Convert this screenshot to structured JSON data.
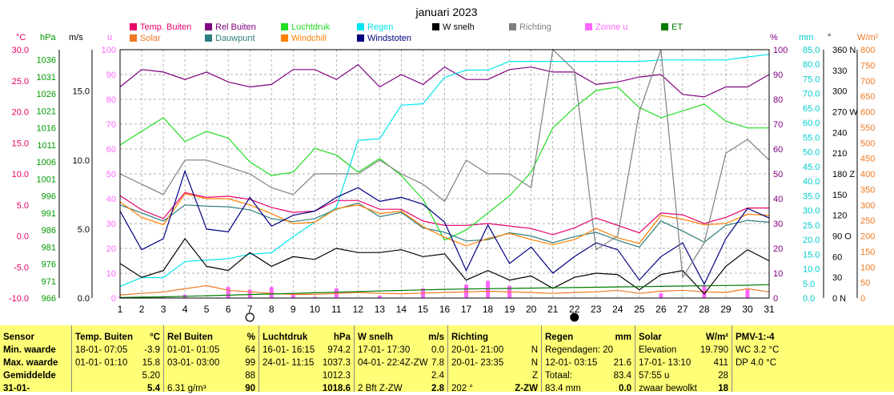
{
  "title": "januari 2023",
  "legend": [
    {
      "label": "Temp. Buiten",
      "color": "#e8006a"
    },
    {
      "label": "Solar",
      "color": "#f07820"
    },
    {
      "label": "Rel Buiten",
      "color": "#800080"
    },
    {
      "label": "Dauwpunt",
      "color": "#2e7d7d"
    },
    {
      "label": "Luchtdruk",
      "color": "#22dd22"
    },
    {
      "label": "Windchill",
      "color": "#ff8000"
    },
    {
      "label": "Regen",
      "color": "#00e5ee"
    },
    {
      "label": "Windstoten",
      "color": "#000080"
    },
    {
      "label": "W snelh",
      "color": "#000000"
    },
    {
      "label": "Richting",
      "color": "#808080"
    },
    {
      "label": "Zonne u",
      "color": "#ff66ff"
    },
    {
      "label": "ET",
      "color": "#007a00"
    }
  ],
  "axes": {
    "temp": {
      "unit": "°C",
      "ticks": [
        "30.0",
        "25.0",
        "20.0",
        "15.0",
        "10.0",
        "5.0",
        "0.0",
        "-5.0",
        "-10.0"
      ]
    },
    "hpa": {
      "unit": "hPa",
      "ticks": [
        "1036",
        "1031",
        "1026",
        "1021",
        "1016",
        "1011",
        "1006",
        "1001",
        "996",
        "991",
        "986",
        "981",
        "976",
        "971",
        "966"
      ]
    },
    "ms": {
      "unit": "m/s",
      "ticks": [
        "15.0",
        "10.0",
        "5.0",
        "0.0"
      ]
    },
    "u": {
      "unit": "u",
      "ticks": [
        "100",
        "90",
        "80",
        "70",
        "60",
        "50",
        "40",
        "30",
        "20",
        "10",
        "0"
      ]
    },
    "pct": {
      "unit": "%",
      "ticks": [
        "100",
        "90",
        "80",
        "70",
        "60",
        "50",
        "40",
        "30",
        "20",
        "10",
        "0"
      ]
    },
    "mm": {
      "unit": "mm",
      "ticks": [
        "85.0",
        "80.0",
        "75.0",
        "70.0",
        "65.0",
        "60.0",
        "55.0",
        "50.0",
        "45.0",
        "40.0",
        "35.0",
        "30.0",
        "25.0",
        "20.0",
        "15.0",
        "10.0",
        "5.0",
        "0.0"
      ]
    },
    "deg": {
      "unit": "°",
      "ticks": [
        "360 N",
        "330",
        "300",
        "270 W",
        "240",
        "210",
        "180 Z",
        "150",
        "120",
        "90 O",
        "60",
        "30",
        "0 N"
      ]
    },
    "wm2": {
      "unit": "W/m²",
      "ticks": [
        "800",
        "750",
        "700",
        "650",
        "600",
        "550",
        "500",
        "450",
        "400",
        "350",
        "300",
        "250",
        "200",
        "150",
        "100",
        "50",
        "0"
      ]
    },
    "days": [
      "1",
      "2",
      "3",
      "4",
      "5",
      "6",
      "7",
      "8",
      "9",
      "10",
      "11",
      "12",
      "13",
      "14",
      "15",
      "16",
      "17",
      "18",
      "19",
      "20",
      "21",
      "22",
      "23",
      "24",
      "25",
      "26",
      "27",
      "28",
      "29",
      "30",
      "31"
    ]
  },
  "chart_data": {
    "type": "line",
    "title": "januari 2023",
    "x": [
      1,
      2,
      3,
      4,
      5,
      6,
      7,
      8,
      9,
      10,
      11,
      12,
      13,
      14,
      15,
      16,
      17,
      18,
      19,
      20,
      21,
      22,
      23,
      24,
      25,
      26,
      27,
      28,
      29,
      30,
      31
    ],
    "series": [
      {
        "name": "Temp. Buiten",
        "unit": "°C",
        "values": [
          6.5,
          4.2,
          2.8,
          7.0,
          6.2,
          6.4,
          5.9,
          4.6,
          3.8,
          4.0,
          5.7,
          5.7,
          4.3,
          4.3,
          2.4,
          1.7,
          1.7,
          2.0,
          1.6,
          1.2,
          0.2,
          1.3,
          2.9,
          1.7,
          0.5,
          3.7,
          3.4,
          2.0,
          3.0,
          4.5,
          4.5
        ]
      },
      {
        "name": "Rel Buiten",
        "unit": "%",
        "values": [
          85,
          92,
          91,
          88,
          91,
          87,
          85,
          86,
          92,
          92,
          88,
          94,
          85,
          90,
          86,
          93,
          88,
          88,
          92,
          93,
          91,
          91,
          86,
          87,
          89,
          90,
          82,
          81,
          85,
          85,
          90
        ]
      },
      {
        "name": "Luchtdruk",
        "unit": "hPa",
        "values": [
          1011,
          1015,
          1019,
          1012,
          1015,
          1013,
          1006,
          1002,
          1003,
          1010,
          1008,
          1003,
          1007,
          1002,
          995,
          983,
          986,
          991,
          996,
          1003,
          1016,
          1022,
          1027,
          1028,
          1022,
          1019,
          1021,
          1023,
          1018,
          1016,
          1016
        ]
      },
      {
        "name": "Regen",
        "unit": "mm",
        "values": [
          4.0,
          7.0,
          7.0,
          12.5,
          13.0,
          13.5,
          15.0,
          15.5,
          21.0,
          26.0,
          31.0,
          54.0,
          54.5,
          66.0,
          66.5,
          75.5,
          78.0,
          78.0,
          81.0,
          81.0,
          81.0,
          81.0,
          81.0,
          81.0,
          81.0,
          81.5,
          81.5,
          81.5,
          81.5,
          82.5,
          83.4
        ]
      },
      {
        "name": "Solar",
        "unit": "W/m²",
        "values": [
          10,
          15,
          20,
          30,
          40,
          25,
          20,
          15,
          12,
          12,
          15,
          18,
          15,
          14,
          16,
          18,
          20,
          22,
          20,
          18,
          15,
          18,
          20,
          25,
          15,
          22,
          25,
          20,
          18,
          30,
          20
        ]
      },
      {
        "name": "Dauwpunt",
        "unit": "°C",
        "values": [
          5.0,
          3.7,
          2.4,
          5.0,
          4.8,
          4.7,
          4.2,
          2.8,
          2.3,
          2.8,
          4.3,
          5.3,
          3.1,
          3.8,
          1.3,
          0.6,
          -0.8,
          -0.6,
          0.5,
          0.0,
          -1.1,
          -0.1,
          0.6,
          -0.7,
          -1.8,
          2.4,
          0.8,
          -1.0,
          1.7,
          2.5,
          2.2
        ]
      },
      {
        "name": "Windchill",
        "unit": "°C",
        "values": [
          5.5,
          3.0,
          1.8,
          6.8,
          6.0,
          6.0,
          5.0,
          3.6,
          2.0,
          2.2,
          4.4,
          5.0,
          3.6,
          4.0,
          1.5,
          -0.2,
          -1.6,
          -0.4,
          0.4,
          -0.6,
          -1.4,
          -0.6,
          1.2,
          -0.3,
          -1.2,
          3.3,
          2.7,
          1.8,
          2.0,
          3.5,
          3.3
        ]
      },
      {
        "name": "Windstoten",
        "unit": "m/s",
        "values": [
          6.3,
          3.5,
          4.3,
          9.2,
          5.0,
          4.8,
          7.3,
          5.2,
          6.0,
          6.3,
          7.3,
          8.0,
          7.0,
          7.3,
          6.8,
          5.5,
          2.0,
          5.3,
          2.5,
          3.7,
          1.8,
          3.0,
          4.0,
          3.5,
          1.3,
          3.0,
          4.0,
          1.0,
          4.3,
          6.5,
          5.8
        ]
      },
      {
        "name": "W snelh",
        "unit": "m/s",
        "values": [
          2.5,
          1.5,
          2.0,
          4.3,
          2.3,
          2.0,
          3.3,
          2.3,
          3.0,
          2.8,
          3.6,
          3.3,
          3.3,
          3.5,
          3.0,
          3.2,
          1.3,
          2.0,
          1.3,
          1.6,
          0.7,
          1.5,
          1.8,
          1.7,
          0.6,
          1.7,
          2.0,
          0.3,
          2.3,
          3.5,
          2.7
        ]
      },
      {
        "name": "Richting",
        "unit": "°",
        "values": [
          180,
          165,
          150,
          200,
          200,
          190,
          180,
          160,
          150,
          180,
          180,
          180,
          200,
          180,
          165,
          140,
          200,
          180,
          180,
          160,
          360,
          330,
          70,
          90,
          270,
          360,
          30,
          80,
          210,
          230,
          200
        ]
      },
      {
        "name": "ET",
        "unit": "mm",
        "values": [
          0.2,
          0.3,
          0.4,
          0.6,
          0.8,
          1.0,
          1.2,
          1.4,
          1.6,
          1.8,
          2.0,
          2.2,
          2.4,
          2.6,
          2.8,
          3.0,
          3.1,
          3.2,
          3.3,
          3.4,
          3.5,
          3.6,
          3.7,
          3.8,
          3.9,
          4.0,
          4.1,
          4.2,
          4.3,
          4.4,
          4.6
        ]
      },
      {
        "name": "Zonne u",
        "unit": "u",
        "values": [
          0.5,
          0,
          0.5,
          1.5,
          0,
          4.5,
          3.5,
          4.5,
          2.0,
          0.5,
          4.0,
          0,
          1.0,
          0,
          4.0,
          0,
          5.5,
          7.0,
          5.0,
          0,
          0,
          0,
          0,
          0,
          0,
          2.0,
          0,
          5.0,
          0,
          3.5,
          0
        ]
      }
    ]
  },
  "moon_phases": {
    "full_day": 7,
    "new_day": 22
  },
  "table": {
    "sensor": {
      "header": "Sensor",
      "rows": [
        "Min. waarde",
        "Max. waarde",
        "Gemiddelde",
        "31-01-"
      ]
    },
    "temp": {
      "header": "Temp. Buiten",
      "unit": "°C",
      "rows": [
        [
          "18-01- 07:05",
          "-3.9"
        ],
        [
          "01-01- 01:10",
          "15.8"
        ],
        [
          "",
          "5.20"
        ],
        [
          "",
          "5.4"
        ]
      ]
    },
    "rel": {
      "header": "Rel Buiten",
      "unit": "%",
      "rows": [
        [
          "01-01- 01:05",
          "64"
        ],
        [
          "03-01- 03:00",
          "99"
        ],
        [
          "",
          "88"
        ],
        [
          "6.31 g/m³",
          "90"
        ]
      ]
    },
    "druk": {
      "header": "Luchtdruk",
      "unit": "hPa",
      "rows": [
        [
          "16-01- 16:15",
          "974.2"
        ],
        [
          "24-01- 11:15",
          "1037.3"
        ],
        [
          "",
          "1012.3"
        ],
        [
          "",
          "1018.6"
        ]
      ]
    },
    "wind": {
      "header": "W snelh",
      "unit": "m/s",
      "rows": [
        [
          "17-01- 17:30",
          "0.0"
        ],
        [
          "04-01- 22:4Z-ZW",
          "7.8"
        ],
        [
          "",
          "2.4"
        ],
        [
          "2 Bft Z-ZW",
          "2.8"
        ]
      ]
    },
    "richting": {
      "header": "Richting",
      "rows": [
        [
          "20-01- 21:00",
          "N"
        ],
        [
          "20-01- 23:35",
          "N"
        ],
        [
          "",
          "Z"
        ],
        [
          "202 °",
          "Z-ZW"
        ]
      ]
    },
    "regen": {
      "header": "Regen",
      "unit": "mm",
      "rows": [
        [
          "Regendagen: 20",
          ""
        ],
        [
          "12-01- 03:15",
          "21.6"
        ],
        [
          "Totaal:",
          "83.4"
        ],
        [
          "83.4 mm",
          "0.0"
        ]
      ]
    },
    "solar": {
      "header": "Solar",
      "unit": "W/m²",
      "rows": [
        [
          "Elevation",
          "19.790"
        ],
        [
          "17-01- 13:10",
          "411"
        ],
        [
          "57:55 u",
          "28"
        ],
        [
          "zwaar bewolkt",
          "18"
        ]
      ]
    },
    "pmv": {
      "header": "PMV-1:-4",
      "rows": [
        "WC 3.2 °C",
        "DP 4.0 °C"
      ]
    }
  }
}
